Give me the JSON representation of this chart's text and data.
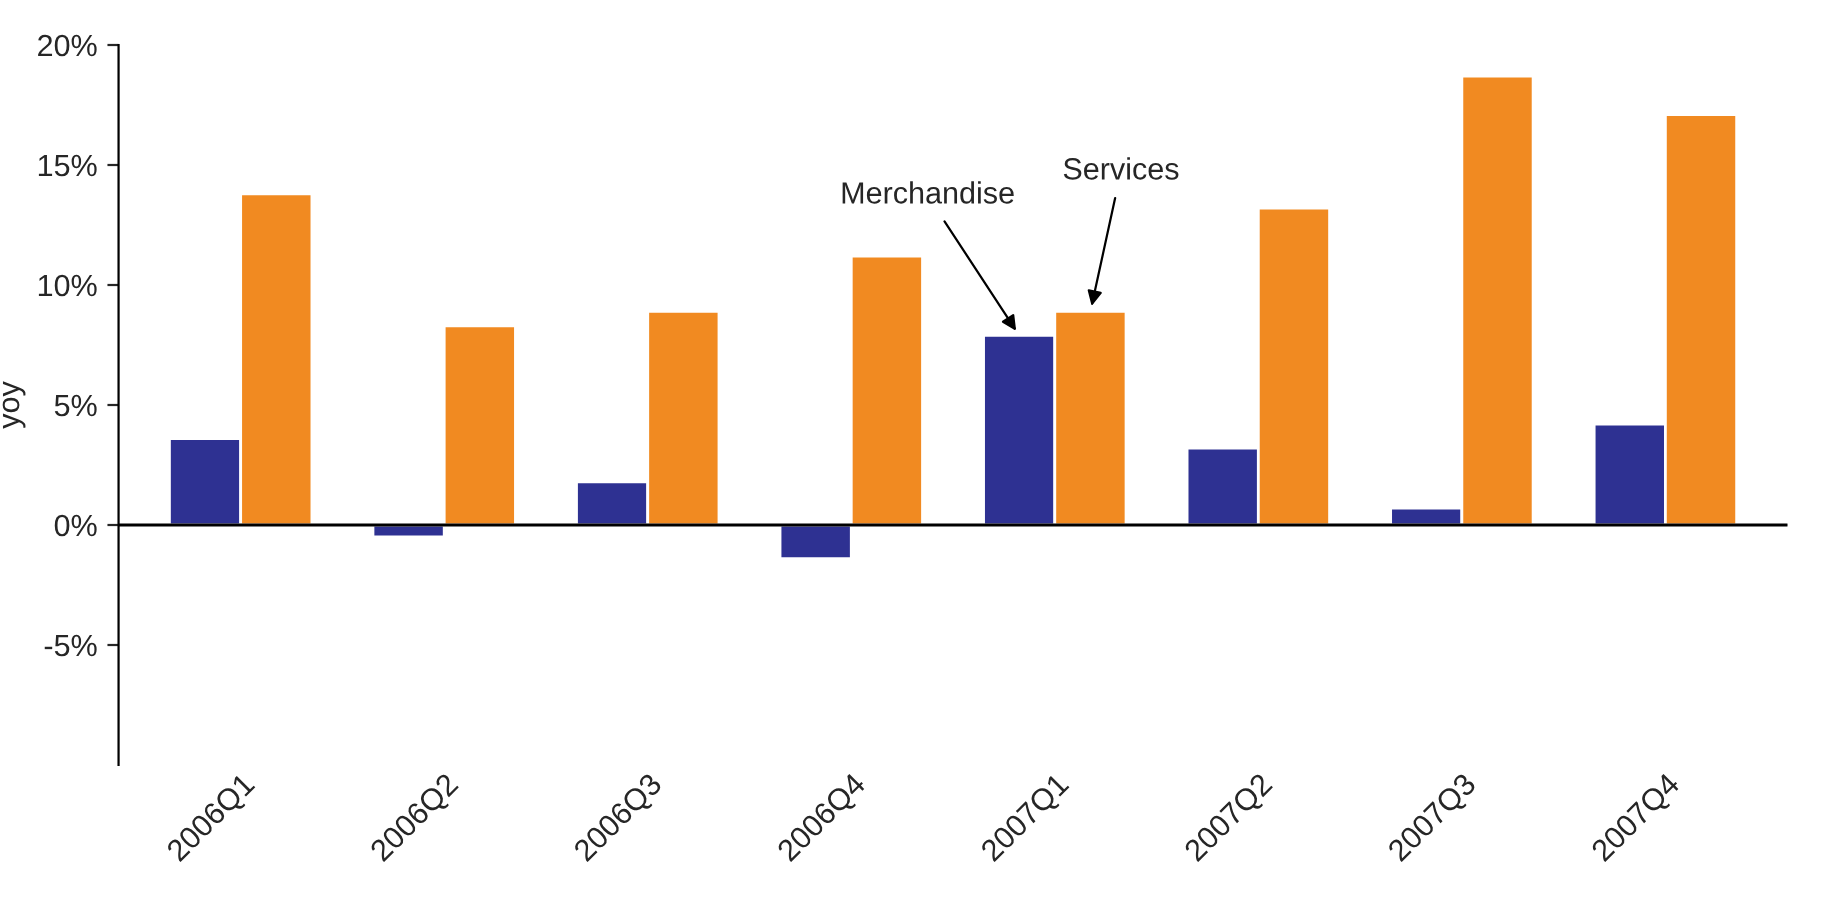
{
  "chart_data": {
    "type": "bar",
    "ylabel": "yoy",
    "categories": [
      "2006Q1",
      "2006Q2",
      "2006Q3",
      "2006Q4",
      "2007Q1",
      "2007Q2",
      "2007Q3",
      "2007Q4"
    ],
    "series": [
      {
        "name": "Merchandise",
        "color": "#2e3192",
        "values": [
          3.6,
          -0.5,
          1.8,
          -1.4,
          7.9,
          3.2,
          0.7,
          4.2
        ]
      },
      {
        "name": "Services",
        "color": "#f18a21",
        "values": [
          13.8,
          8.3,
          8.9,
          11.2,
          8.9,
          13.2,
          18.7,
          17.1
        ]
      }
    ],
    "ylim": [
      -10,
      20
    ],
    "yticks": [
      {
        "value": -5,
        "label": "-5%"
      },
      {
        "value": 0,
        "label": "0%"
      },
      {
        "value": 5,
        "label": "5%"
      },
      {
        "value": 10,
        "label": "10%"
      },
      {
        "value": 15,
        "label": "15%"
      },
      {
        "value": 20,
        "label": "20%"
      }
    ],
    "ref_lines": [
      {
        "axis": "y",
        "value": 0,
        "color": "#000000"
      }
    ],
    "grid": false,
    "legend": false
  }
}
